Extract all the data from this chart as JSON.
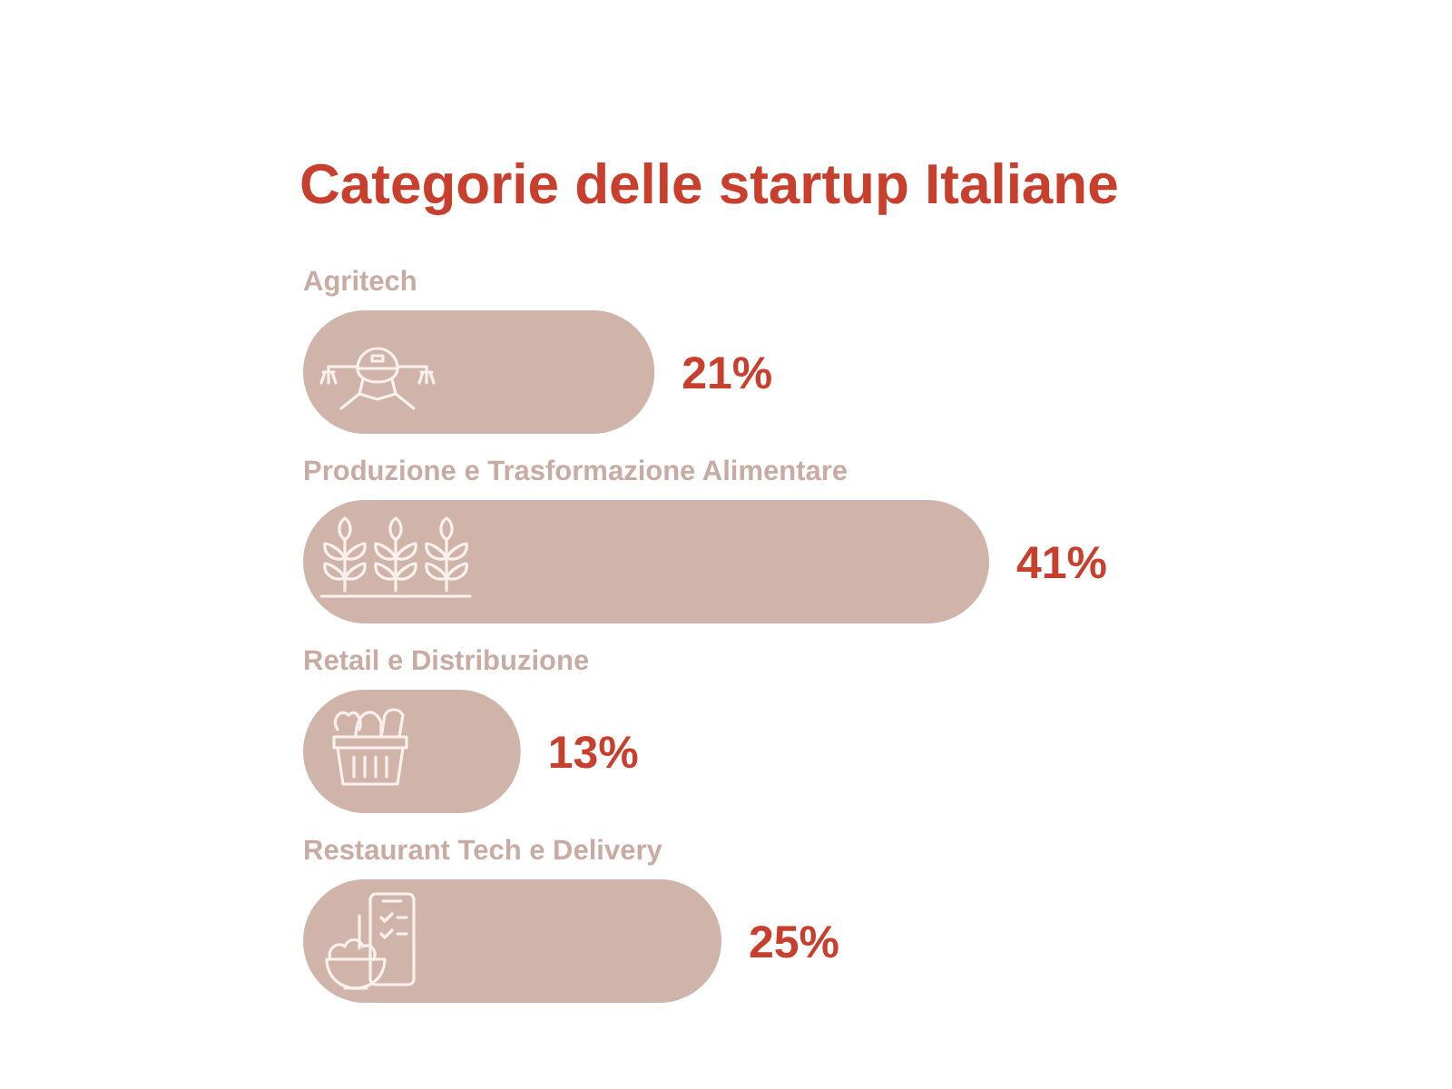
{
  "chart_data": {
    "type": "bar",
    "orientation": "horizontal",
    "title": "Categorie delle startup Italiane",
    "categories": [
      "Agritech",
      "Produzione e Trasformazione Alimentare",
      "Retail e Distribuzione",
      "Restaurant Tech e Delivery"
    ],
    "values": [
      21,
      41,
      13,
      25
    ],
    "value_labels": [
      "21%",
      "41%",
      "13%",
      "25%"
    ],
    "color": "#d0b4aa"
  }
}
